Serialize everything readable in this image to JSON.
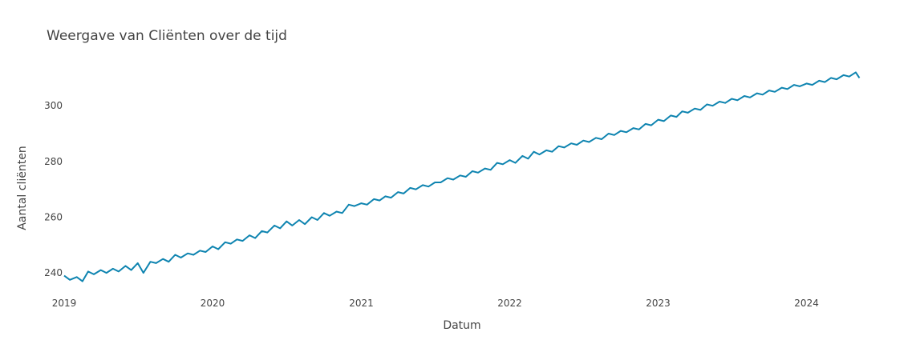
{
  "chart_data": {
    "type": "line",
    "title": "Weergave van Cliënten over de tijd",
    "xlabel": "Datum",
    "ylabel": "Aantal cliënten",
    "xlim": [
      "2019-01-01",
      "2024-05-15"
    ],
    "ylim": [
      234,
      315
    ],
    "xticks": [
      "2019",
      "2020",
      "2021",
      "2022",
      "2023",
      "2024"
    ],
    "yticks": [
      240,
      260,
      280,
      300
    ],
    "grid": false,
    "legend": "none",
    "series": [
      {
        "color": "#0e84b0",
        "x": [
          "2019-01-01",
          "2019-01-15",
          "2019-02-01",
          "2019-02-15",
          "2019-03-01",
          "2019-03-15",
          "2019-04-01",
          "2019-04-15",
          "2019-05-01",
          "2019-05-15",
          "2019-06-01",
          "2019-06-15",
          "2019-07-01",
          "2019-07-15",
          "2019-08-01",
          "2019-08-15",
          "2019-09-01",
          "2019-09-15",
          "2019-10-01",
          "2019-10-15",
          "2019-11-01",
          "2019-11-15",
          "2019-12-01",
          "2019-12-15",
          "2020-01-01",
          "2020-01-15",
          "2020-02-01",
          "2020-02-15",
          "2020-03-01",
          "2020-03-15",
          "2020-04-01",
          "2020-04-15",
          "2020-05-01",
          "2020-05-15",
          "2020-06-01",
          "2020-06-15",
          "2020-07-01",
          "2020-07-15",
          "2020-08-01",
          "2020-08-15",
          "2020-09-01",
          "2020-09-15",
          "2020-10-01",
          "2020-10-15",
          "2020-11-01",
          "2020-11-15",
          "2020-12-01",
          "2020-12-15",
          "2021-01-01",
          "2021-01-15",
          "2021-02-01",
          "2021-02-15",
          "2021-03-01",
          "2021-03-15",
          "2021-04-01",
          "2021-04-15",
          "2021-05-01",
          "2021-05-15",
          "2021-06-01",
          "2021-06-15",
          "2021-07-01",
          "2021-07-15",
          "2021-08-01",
          "2021-08-15",
          "2021-09-01",
          "2021-09-15",
          "2021-10-01",
          "2021-10-15",
          "2021-11-01",
          "2021-11-15",
          "2021-12-01",
          "2021-12-15",
          "2022-01-01",
          "2022-01-15",
          "2022-02-01",
          "2022-02-15",
          "2022-03-01",
          "2022-03-15",
          "2022-04-01",
          "2022-04-15",
          "2022-05-01",
          "2022-05-15",
          "2022-06-01",
          "2022-06-15",
          "2022-07-01",
          "2022-07-15",
          "2022-08-01",
          "2022-08-15",
          "2022-09-01",
          "2022-09-15",
          "2022-10-01",
          "2022-10-15",
          "2022-11-01",
          "2022-11-15",
          "2022-12-01",
          "2022-12-15",
          "2023-01-01",
          "2023-01-15",
          "2023-02-01",
          "2023-02-15",
          "2023-03-01",
          "2023-03-15",
          "2023-04-01",
          "2023-04-15",
          "2023-05-01",
          "2023-05-15",
          "2023-06-01",
          "2023-06-15",
          "2023-07-01",
          "2023-07-15",
          "2023-08-01",
          "2023-08-15",
          "2023-09-01",
          "2023-09-15",
          "2023-10-01",
          "2023-10-15",
          "2023-11-01",
          "2023-11-15",
          "2023-12-01",
          "2023-12-15",
          "2024-01-01",
          "2024-01-15",
          "2024-02-01",
          "2024-02-15",
          "2024-03-01",
          "2024-03-15",
          "2024-04-01",
          "2024-04-15",
          "2024-05-01",
          "2024-05-10"
        ],
        "y": [
          239.0,
          237.5,
          238.5,
          237.0,
          240.5,
          239.5,
          241.0,
          240.0,
          241.5,
          240.5,
          242.5,
          241.0,
          243.5,
          240.0,
          244.0,
          243.5,
          245.0,
          244.0,
          246.5,
          245.5,
          247.0,
          246.5,
          248.0,
          247.5,
          249.5,
          248.5,
          251.0,
          250.5,
          252.0,
          251.5,
          253.5,
          252.5,
          255.0,
          254.5,
          257.0,
          256.0,
          258.5,
          257.0,
          259.0,
          257.5,
          260.0,
          259.0,
          261.5,
          260.5,
          262.0,
          261.5,
          264.5,
          264.0,
          265.0,
          264.5,
          266.5,
          266.0,
          267.5,
          267.0,
          269.0,
          268.5,
          270.5,
          270.0,
          271.5,
          271.0,
          272.5,
          272.5,
          274.0,
          273.5,
          275.0,
          274.5,
          276.5,
          276.0,
          277.5,
          277.0,
          279.5,
          279.0,
          280.5,
          279.5,
          282.0,
          281.0,
          283.5,
          282.5,
          284.0,
          283.5,
          285.5,
          285.0,
          286.5,
          286.0,
          287.5,
          287.0,
          288.5,
          288.0,
          290.0,
          289.5,
          291.0,
          290.5,
          292.0,
          291.5,
          293.5,
          293.0,
          295.0,
          294.5,
          296.5,
          296.0,
          298.0,
          297.5,
          299.0,
          298.5,
          300.5,
          300.0,
          301.5,
          301.0,
          302.5,
          302.0,
          303.5,
          303.0,
          304.5,
          304.0,
          305.5,
          305.0,
          306.5,
          306.0,
          307.5,
          307.0,
          308.0,
          307.5,
          309.0,
          308.5,
          310.0,
          309.5,
          311.0,
          310.5,
          312.0,
          310.0
        ]
      }
    ]
  }
}
